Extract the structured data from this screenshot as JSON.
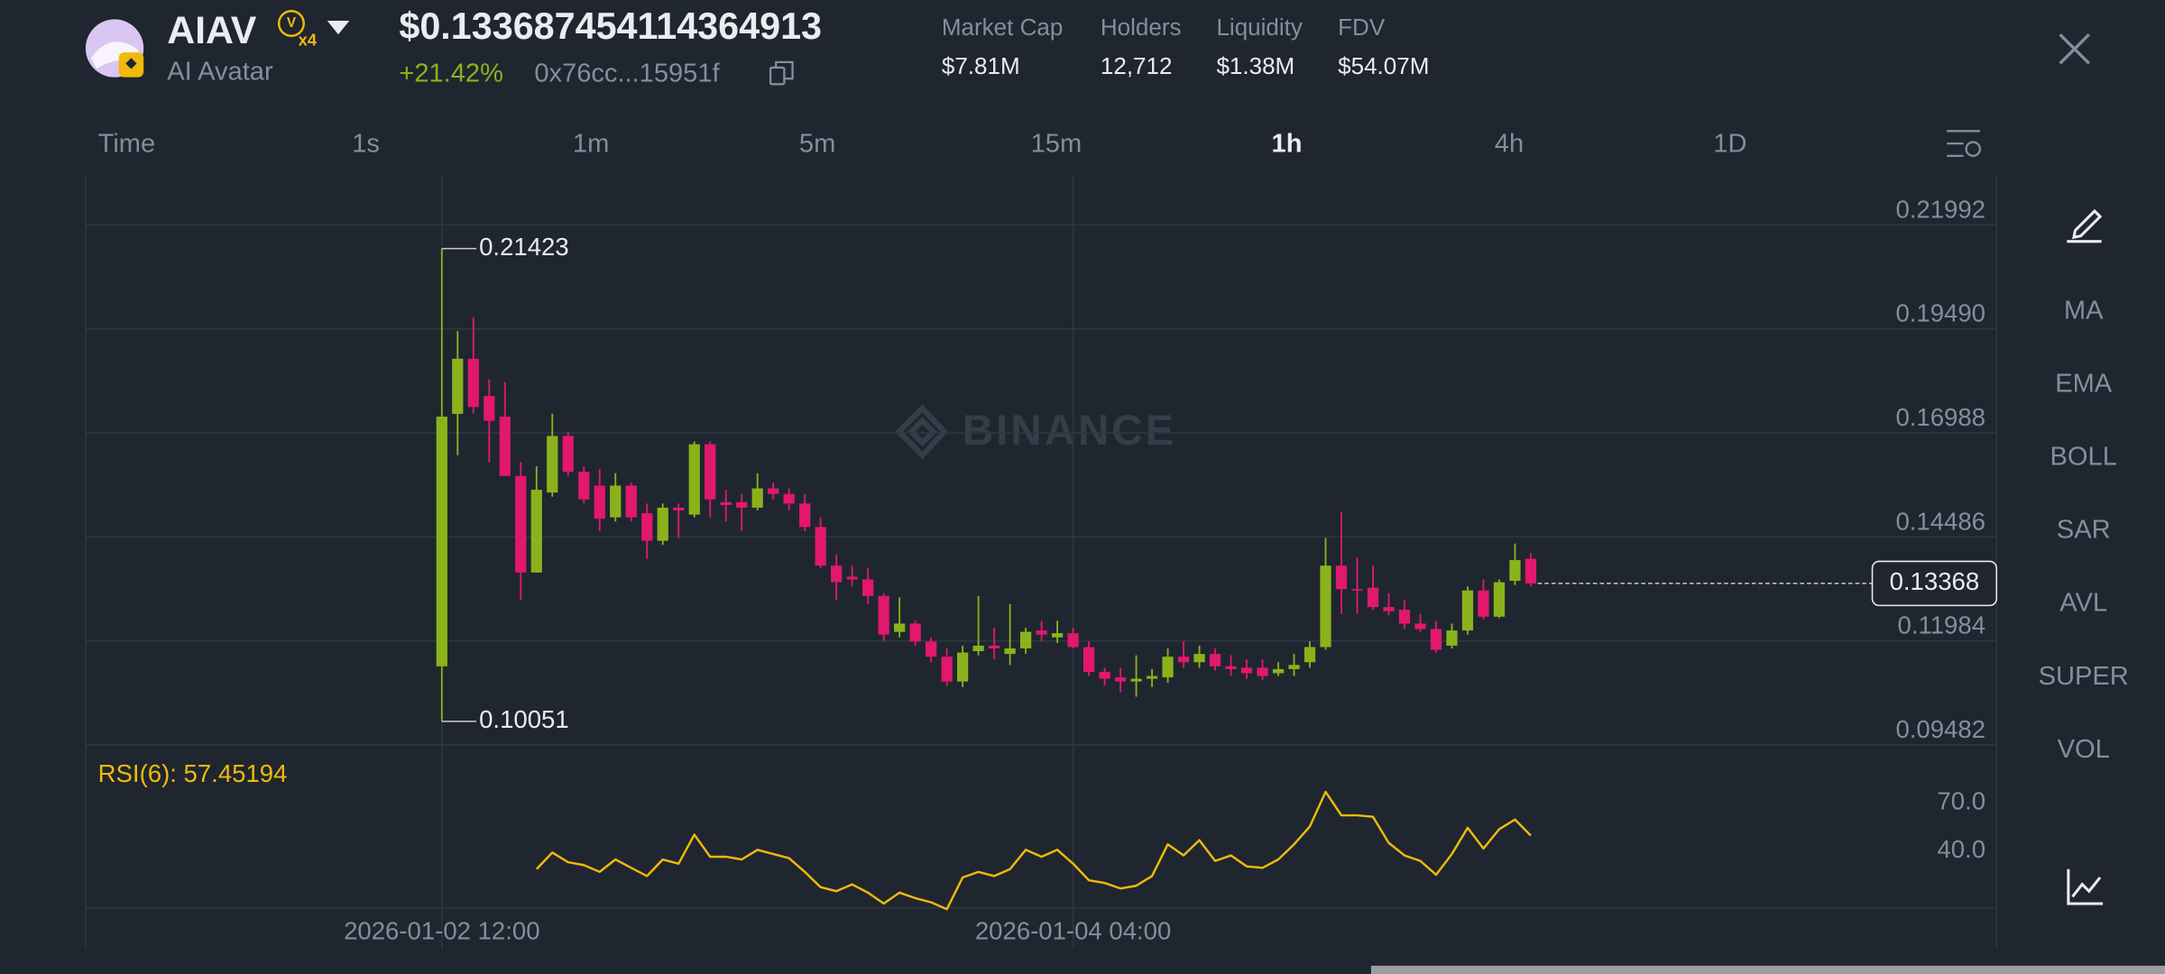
{
  "header": {
    "symbol": "AIAV",
    "multiplier": "x4",
    "name": "AI Avatar",
    "price": "$0.133687454114364913",
    "change": "+21.42%",
    "address": "0x76cc...15951f",
    "stats": [
      {
        "label": "Market Cap",
        "value": "$7.81M"
      },
      {
        "label": "Holders",
        "value": "12,712"
      },
      {
        "label": "Liquidity",
        "value": "$1.38M"
      },
      {
        "label": "FDV",
        "value": "$54.07M"
      }
    ]
  },
  "intervals": {
    "label": "Time",
    "options": [
      "1s",
      "1m",
      "5m",
      "15m",
      "1h",
      "4h",
      "1D"
    ],
    "selected_index": 4
  },
  "indicators": [
    "MA",
    "EMA",
    "BOLL",
    "SAR",
    "AVL",
    "SUPER",
    "VOL"
  ],
  "watermark": "BINANCE",
  "chart_data": [
    {
      "type": "candlestick",
      "up_color": "#8ab31b",
      "down_color": "#e2186d",
      "categories": [
        "2026-01-02 12:00",
        null,
        null,
        null,
        null,
        null,
        null,
        null,
        null,
        null,
        null,
        null,
        null,
        null,
        null,
        null,
        null,
        null,
        null,
        null,
        null,
        null,
        null,
        null,
        null,
        null,
        null,
        null,
        null,
        null,
        null,
        null,
        null,
        null,
        null,
        null,
        null,
        null,
        null,
        null,
        "2026-01-04 04:00",
        null,
        null,
        null,
        null,
        null,
        null,
        null,
        null,
        null,
        null,
        null,
        null,
        null,
        null,
        null,
        null,
        null,
        null,
        null,
        null,
        null,
        null,
        null,
        null,
        null,
        null,
        null,
        null,
        null
      ],
      "open": [
        0.11374,
        0.17446,
        0.18773,
        0.17877,
        0.1738,
        0.15953,
        0.1363,
        0.15555,
        0.16915,
        0.16052,
        0.15721,
        0.14957,
        0.15721,
        0.15057,
        0.14393,
        0.1519,
        0.15024,
        0.16716,
        0.15322,
        0.15322,
        0.1519,
        0.15654,
        0.15521,
        0.15289,
        0.14725,
        0.13796,
        0.1353,
        0.13464,
        0.13066,
        0.12203,
        0.12402,
        0.11971,
        0.11606,
        0.11009,
        0.11739,
        0.11871,
        0.11672,
        0.11805,
        0.12236,
        0.1207,
        0.1217,
        0.11838,
        0.11241,
        0.11108,
        0.11009,
        0.11075,
        0.11108,
        0.11606,
        0.11473,
        0.11672,
        0.11374,
        0.1134,
        0.1134,
        0.11208,
        0.11307,
        0.11473,
        0.11838,
        0.13796,
        0.13232,
        0.13265,
        0.128,
        0.12734,
        0.12402,
        0.1227,
        0.11871,
        0.12236,
        0.13199,
        0.12568,
        0.13431,
        0.13962
      ],
      "high": [
        0.21423,
        0.19437,
        0.19769,
        0.18276,
        0.18209,
        0.16285,
        0.16185,
        0.17446,
        0.17015,
        0.16185,
        0.16119,
        0.16019,
        0.15787,
        0.15289,
        0.15289,
        0.15289,
        0.16782,
        0.16782,
        0.15621,
        0.15521,
        0.16019,
        0.15787,
        0.15654,
        0.15521,
        0.14957,
        0.14061,
        0.13796,
        0.1373,
        0.13132,
        0.13033,
        0.12469,
        0.1207,
        0.11805,
        0.11871,
        0.13066,
        0.12303,
        0.12867,
        0.12303,
        0.12469,
        0.12469,
        0.12303,
        0.11971,
        0.1134,
        0.1134,
        0.11639,
        0.11307,
        0.11805,
        0.11971,
        0.11871,
        0.11805,
        0.11639,
        0.1154,
        0.1154,
        0.11473,
        0.11672,
        0.11971,
        0.1446,
        0.1509,
        0.13995,
        0.13796,
        0.13132,
        0.12966,
        0.12635,
        0.12469,
        0.12402,
        0.13298,
        0.13464,
        0.13464,
        0.14327,
        0.14095
      ],
      "low": [
        0.10051,
        0.16451,
        0.17446,
        0.16285,
        0.15953,
        0.12966,
        0.1363,
        0.15455,
        0.15953,
        0.15289,
        0.14626,
        0.14858,
        0.14858,
        0.13962,
        0.14294,
        0.1446,
        0.14957,
        0.14957,
        0.14858,
        0.14626,
        0.15123,
        0.15389,
        0.15123,
        0.14626,
        0.1373,
        0.12966,
        0.13298,
        0.12867,
        0.11971,
        0.1207,
        0.11871,
        0.11473,
        0.10909,
        0.10876,
        0.11639,
        0.1154,
        0.11407,
        0.11672,
        0.11971,
        0.11938,
        0.11805,
        0.11141,
        0.10909,
        0.10743,
        0.10644,
        0.10876,
        0.10975,
        0.1134,
        0.1134,
        0.11274,
        0.11141,
        0.11075,
        0.11042,
        0.11141,
        0.11141,
        0.1134,
        0.11772,
        0.12635,
        0.12635,
        0.12734,
        0.12601,
        0.1227,
        0.12203,
        0.11705,
        0.11805,
        0.12137,
        0.12502,
        0.12535,
        0.13331,
        0.13298
      ],
      "close": [
        0.1738,
        0.18773,
        0.17612,
        0.1728,
        0.15953,
        0.1363,
        0.15621,
        0.16915,
        0.16052,
        0.15389,
        0.14924,
        0.15721,
        0.14957,
        0.14393,
        0.1519,
        0.15123,
        0.16716,
        0.15389,
        0.15256,
        0.1519,
        0.15654,
        0.15521,
        0.15289,
        0.14725,
        0.13796,
        0.13398,
        0.13464,
        0.13066,
        0.12137,
        0.12402,
        0.11971,
        0.11606,
        0.11009,
        0.11705,
        0.11871,
        0.11805,
        0.11805,
        0.12203,
        0.12137,
        0.1217,
        0.11838,
        0.11241,
        0.11075,
        0.11009,
        0.11075,
        0.11141,
        0.11606,
        0.11473,
        0.11672,
        0.11374,
        0.11307,
        0.11208,
        0.11141,
        0.11307,
        0.11407,
        0.11838,
        0.13796,
        0.13232,
        0.13199,
        0.128,
        0.12701,
        0.12402,
        0.1227,
        0.11772,
        0.12236,
        0.13199,
        0.12568,
        0.13398,
        0.13929,
        0.13368
      ],
      "ylim": [
        0.09482,
        0.23187
      ],
      "yticks": [
        0.09482,
        0.11984,
        0.14486,
        0.16988,
        {
          "value": 0.1949,
          "label": "0.19490"
        },
        0.21992
      ],
      "grid": true
    },
    {
      "type": "line",
      "title": "RSI(6): 57.45194",
      "color": "#f0b90b",
      "values": [
        null,
        null,
        null,
        null,
        null,
        null,
        36.6,
        46.9,
        40.9,
        39.1,
        34.9,
        42.6,
        37.4,
        32.3,
        42.6,
        40.0,
        58.0,
        44.3,
        44.3,
        42.6,
        48.6,
        46.0,
        43.4,
        34.9,
        25.4,
        22.9,
        27.1,
        22.0,
        15.2,
        22.0,
        18.6,
        16.0,
        11.7,
        31.4,
        34.9,
        32.3,
        36.6,
        48.6,
        44.3,
        48.6,
        40.0,
        29.7,
        28.0,
        24.6,
        26.3,
        32.3,
        52.0,
        45.1,
        54.6,
        41.7,
        45.1,
        38.3,
        37.4,
        42.6,
        52.0,
        63.1,
        84.6,
        70.0,
        70.0,
        69.1,
        52.9,
        45.1,
        41.7,
        33.1,
        46.0,
        62.3,
        49.4,
        61.4,
        67.4,
        57.45
      ],
      "ylim": [
        12.6,
        113.7
      ],
      "yticks": [
        {
          "value": 40,
          "label": "40.0"
        },
        {
          "value": 70,
          "label": "70.0"
        }
      ]
    }
  ]
}
